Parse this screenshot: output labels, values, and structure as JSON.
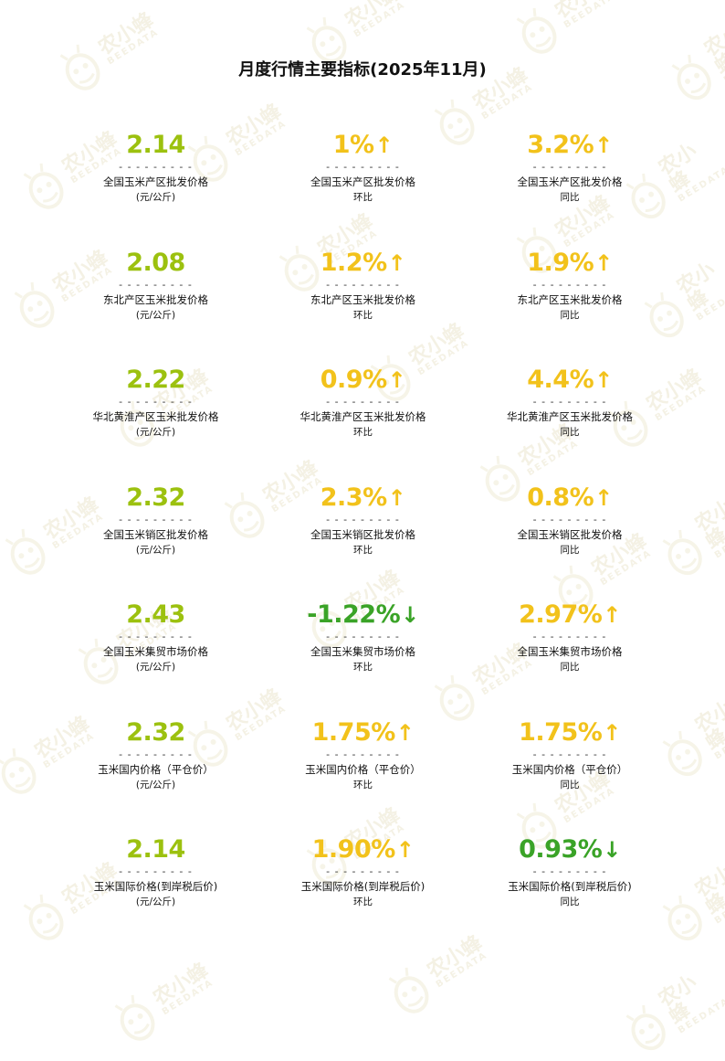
{
  "title": "月度行情主要指标(2025年11月)",
  "watermark": {
    "cn": "农小蜂",
    "en": "BEEDATA"
  },
  "colors": {
    "green": "#9cc10f",
    "yellow": "#f2c21b",
    "dark_green": "#3aa327"
  },
  "dash": "- - - - - - - - -",
  "rows": [
    [
      {
        "value": "2.14",
        "arrow": "",
        "color": "green",
        "label": "全国玉米产区批发价格",
        "sub": "(元/公斤)"
      },
      {
        "value": "1%",
        "arrow": "↑",
        "color": "yellow",
        "label": "全国玉米产区批发价格",
        "sub": "环比"
      },
      {
        "value": "3.2%",
        "arrow": "↑",
        "color": "yellow",
        "label": "全国玉米产区批发价格",
        "sub": "同比"
      }
    ],
    [
      {
        "value": "2.08",
        "arrow": "",
        "color": "green",
        "label": "东北产区玉米批发价格",
        "sub": "(元/公斤)"
      },
      {
        "value": "1.2%",
        "arrow": "↑",
        "color": "yellow",
        "label": "东北产区玉米批发价格",
        "sub": "环比"
      },
      {
        "value": "1.9%",
        "arrow": "↑",
        "color": "yellow",
        "label": "东北产区玉米批发价格",
        "sub": "同比"
      }
    ],
    [
      {
        "value": "2.22",
        "arrow": "",
        "color": "green",
        "label": "华北黄淮产区玉米批发价格",
        "sub": "(元/公斤)"
      },
      {
        "value": "0.9%",
        "arrow": "↑",
        "color": "yellow",
        "label": "华北黄淮产区玉米批发价格",
        "sub": "环比"
      },
      {
        "value": "4.4%",
        "arrow": "↑",
        "color": "yellow",
        "label": "华北黄淮产区玉米批发价格",
        "sub": "同比"
      }
    ],
    [
      {
        "value": "2.32",
        "arrow": "",
        "color": "green",
        "label": "全国玉米销区批发价格",
        "sub": "(元/公斤)"
      },
      {
        "value": "2.3%",
        "arrow": "↑",
        "color": "yellow",
        "label": "全国玉米销区批发价格",
        "sub": "环比"
      },
      {
        "value": "0.8%",
        "arrow": "↑",
        "color": "yellow",
        "label": "全国玉米销区批发价格",
        "sub": "同比"
      }
    ],
    [
      {
        "value": "2.43",
        "arrow": "",
        "color": "green",
        "label": "全国玉米集贸市场价格",
        "sub": "(元/公斤)"
      },
      {
        "value": "-1.22%",
        "arrow": "↓",
        "color": "dark_green",
        "label": "全国玉米集贸市场价格",
        "sub": "环比"
      },
      {
        "value": "2.97%",
        "arrow": "↑",
        "color": "yellow",
        "label": "全国玉米集贸市场价格",
        "sub": "同比"
      }
    ],
    [
      {
        "value": "2.32",
        "arrow": "",
        "color": "green",
        "label": "玉米国内价格（平仓价）",
        "sub": "(元/公斤)"
      },
      {
        "value": "1.75%",
        "arrow": "↑",
        "color": "yellow",
        "label": "玉米国内价格（平仓价）",
        "sub": "环比"
      },
      {
        "value": "1.75%",
        "arrow": "↑",
        "color": "yellow",
        "label": "玉米国内价格（平仓价）",
        "sub": "同比"
      }
    ],
    [
      {
        "value": "2.14",
        "arrow": "",
        "color": "green",
        "label": "玉米国际价格(到岸税后价)",
        "sub": "(元/公斤)"
      },
      {
        "value": "1.90%",
        "arrow": "↑",
        "color": "yellow",
        "label": "玉米国际价格(到岸税后价)",
        "sub": "环比"
      },
      {
        "value": "0.93%",
        "arrow": "↓",
        "color": "dark_green",
        "label": "玉米国际价格(到岸税后价)",
        "sub": "同比"
      }
    ]
  ]
}
